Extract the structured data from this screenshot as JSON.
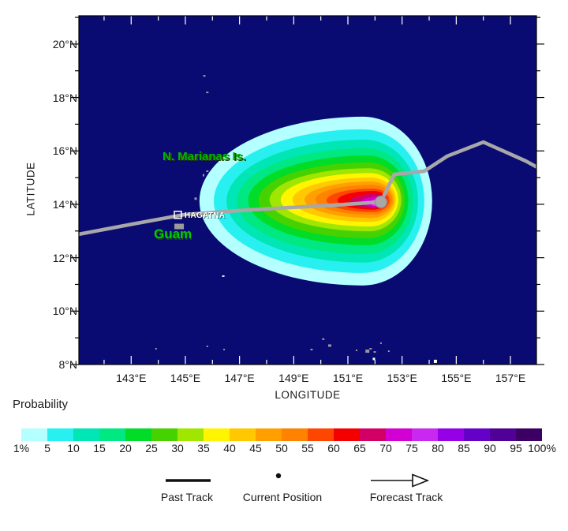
{
  "chart_data": {
    "type": "heatmap",
    "xlabel": "LONGITUDE",
    "ylabel": "LATITUDE",
    "xlim": [
      141.07,
      157.96
    ],
    "ylim": [
      8.0,
      21.06
    ],
    "grid": false,
    "map_background": "#0A0A73",
    "x_tick_labels": [
      {
        "value": 143,
        "label": "143°E"
      },
      {
        "value": 145,
        "label": "145°E"
      },
      {
        "value": 147,
        "label": "147°E"
      },
      {
        "value": 149,
        "label": "149°E"
      },
      {
        "value": 151,
        "label": "151°E"
      },
      {
        "value": 153,
        "label": "153°E"
      },
      {
        "value": 155,
        "label": "155°E"
      },
      {
        "value": 157,
        "label": "157°E"
      }
    ],
    "y_tick_labels": [
      {
        "value": 8,
        "label": "8°N"
      },
      {
        "value": 10,
        "label": "10°N"
      },
      {
        "value": 12,
        "label": "12°N"
      },
      {
        "value": 14,
        "label": "14°N"
      },
      {
        "value": 16,
        "label": "16°N"
      },
      {
        "value": 18,
        "label": "18°N"
      },
      {
        "value": 20,
        "label": "20°N"
      }
    ],
    "colorbar": {
      "title": "Probability",
      "labels": [
        "1%",
        "5",
        "10",
        "15",
        "20",
        "25",
        "30",
        "35",
        "40",
        "45",
        "50",
        "55",
        "60",
        "65",
        "70",
        "75",
        "80",
        "85",
        "90",
        "95",
        "100%"
      ],
      "colors": [
        "#B4FFFF",
        "#28F0F0",
        "#00E6B4",
        "#00E882",
        "#00DC28",
        "#46D200",
        "#A0E600",
        "#FFF500",
        "#FFC800",
        "#FFA000",
        "#FF8200",
        "#FF4600",
        "#F50000",
        "#D20064",
        "#D200D2",
        "#C828F0",
        "#9600E6",
        "#6400C8",
        "#500096",
        "#3C0064"
      ]
    },
    "contours": [
      {
        "percent": 1,
        "color": "#B4FFFF",
        "lon": 151.55,
        "lat": 14.12,
        "rw": 6.03,
        "re": 2.56,
        "rn": 3.16
      },
      {
        "percent": 5,
        "color": "#28F0F0",
        "lon": 151.55,
        "lat": 14.12,
        "rw": 5.5,
        "re": 2.27,
        "rn": 2.69
      },
      {
        "percent": 10,
        "color": "#00E6B4",
        "lon": 151.61,
        "lat": 14.12,
        "rw": 5.09,
        "re": 1.98,
        "rn": 2.3
      },
      {
        "percent": 15,
        "color": "#00E882",
        "lon": 151.66,
        "lat": 14.12,
        "rw": 4.75,
        "re": 1.75,
        "rn": 1.98
      },
      {
        "percent": 20,
        "color": "#00DC28",
        "lon": 151.72,
        "lat": 14.15,
        "rw": 4.4,
        "re": 1.51,
        "rn": 1.68
      },
      {
        "percent": 25,
        "color": "#46D200",
        "lon": 151.75,
        "lat": 14.15,
        "rw": 4.05,
        "re": 1.34,
        "rn": 1.42
      },
      {
        "percent": 30,
        "color": "#A0E600",
        "lon": 151.78,
        "lat": 14.17,
        "rw": 3.67,
        "re": 1.19,
        "rn": 1.18
      },
      {
        "percent": 35,
        "color": "#FFF500",
        "lon": 151.81,
        "lat": 14.17,
        "rw": 3.29,
        "re": 1.05,
        "rn": 1.0
      },
      {
        "percent": 40,
        "color": "#FFC800",
        "lon": 151.84,
        "lat": 14.17,
        "rw": 2.88,
        "re": 0.93,
        "rn": 0.83
      },
      {
        "percent": 45,
        "color": "#FFA000",
        "lon": 151.87,
        "lat": 14.17,
        "rw": 2.47,
        "re": 0.82,
        "rn": 0.68
      },
      {
        "percent": 50,
        "color": "#FF8200",
        "lon": 151.9,
        "lat": 14.17,
        "rw": 2.1,
        "re": 0.73,
        "rn": 0.56
      },
      {
        "percent": 55,
        "color": "#FF4600",
        "lon": 151.93,
        "lat": 14.15,
        "rw": 1.72,
        "re": 0.61,
        "rn": 0.44
      },
      {
        "percent": 60,
        "color": "#F50000",
        "lon": 151.96,
        "lat": 14.15,
        "rw": 1.34,
        "re": 0.49,
        "rn": 0.35
      },
      {
        "percent": 65,
        "color": "#D20064",
        "lon": 151.99,
        "lat": 14.12,
        "rw": 0.9,
        "re": 0.38,
        "rn": 0.27
      },
      {
        "percent": 70,
        "color": "#D200D2",
        "lon": 152.02,
        "lat": 14.09,
        "rw": 0.52,
        "re": 0.26,
        "rn": 0.19
      },
      {
        "percent": 75,
        "color": "#FA3CFA",
        "lon": 152.05,
        "lat": 14.06,
        "rw": 0.23,
        "re": 0.15,
        "rn": 0.12
      }
    ],
    "past_track": {
      "color": "#A8A8A8",
      "points": [
        [
          141.07,
          12.88
        ],
        [
          143.05,
          13.26
        ],
        [
          144.94,
          13.61
        ],
        [
          146.89,
          13.76
        ],
        [
          148.87,
          13.88
        ],
        [
          150.53,
          13.97
        ],
        [
          152.22,
          14.09
        ]
      ]
    },
    "forecast_track": {
      "color": "#A8A8A8",
      "points": [
        [
          152.22,
          14.09
        ],
        [
          152.71,
          15.12
        ],
        [
          153.82,
          15.24
        ],
        [
          154.66,
          15.8
        ],
        [
          156.0,
          16.33
        ],
        [
          157.57,
          15.62
        ],
        [
          157.98,
          15.39
        ]
      ]
    },
    "current_position": {
      "lon": 152.22,
      "lat": 14.09,
      "color": "#A8A8A8"
    },
    "places": [
      {
        "name": "HAGATNA",
        "lon": 144.74,
        "lat": 13.59,
        "marker": "open-square"
      }
    ],
    "islands": [
      {
        "lon": 145.7,
        "lat": 18.81,
        "w": 3,
        "h": 2,
        "color": "#9A9A9A"
      },
      {
        "lon": 145.81,
        "lat": 18.19,
        "w": 3,
        "h": 2,
        "color": "#9A9A9A"
      },
      {
        "lon": 144.85,
        "lat": 15.89,
        "w": 2,
        "h": 2,
        "color": "#9A9A9A"
      },
      {
        "lon": 145.81,
        "lat": 15.24,
        "w": 3,
        "h": 2,
        "color": "#9A9A9A"
      },
      {
        "lon": 145.67,
        "lat": 15.09,
        "w": 2,
        "h": 3,
        "color": "#9A9A9A"
      },
      {
        "lon": 145.38,
        "lat": 14.21,
        "w": 3,
        "h": 3,
        "color": "#9A9A9A"
      },
      {
        "lon": 144.77,
        "lat": 13.17,
        "w": 12,
        "h": 7,
        "color": "#9A9A9A"
      },
      {
        "lon": 146.4,
        "lat": 11.31,
        "w": 3,
        "h": 2,
        "color": "#E8E8E8"
      },
      {
        "lon": 143.92,
        "lat": 8.59,
        "w": 2,
        "h": 2,
        "color": "#9A9A9A"
      },
      {
        "lon": 145.81,
        "lat": 8.68,
        "w": 2,
        "h": 2,
        "color": "#9A9A9A"
      },
      {
        "lon": 146.43,
        "lat": 8.56,
        "w": 2,
        "h": 2,
        "color": "#9A9A9A"
      },
      {
        "lon": 149.66,
        "lat": 8.56,
        "w": 3,
        "h": 2,
        "color": "#9A9A9A"
      },
      {
        "lon": 150.09,
        "lat": 8.95,
        "w": 3,
        "h": 2,
        "color": "#9A9A9A"
      },
      {
        "lon": 150.33,
        "lat": 8.71,
        "w": 4,
        "h": 3,
        "color": "#9A9A9A"
      },
      {
        "lon": 151.32,
        "lat": 8.53,
        "w": 2,
        "h": 2,
        "color": "#9A9A9A"
      },
      {
        "lon": 151.72,
        "lat": 8.5,
        "w": 5,
        "h": 4,
        "color": "#9A9A9A"
      },
      {
        "lon": 151.84,
        "lat": 8.59,
        "w": 3,
        "h": 2,
        "color": "#9A9A9A"
      },
      {
        "lon": 151.99,
        "lat": 8.47,
        "w": 3,
        "h": 2,
        "color": "#9A9A9A"
      },
      {
        "lon": 152.22,
        "lat": 8.8,
        "w": 2,
        "h": 2,
        "color": "#9A9A9A"
      },
      {
        "lon": 152.51,
        "lat": 8.5,
        "w": 2,
        "h": 2,
        "color": "#9A9A9A"
      },
      {
        "lon": 154.23,
        "lat": 8.12,
        "w": 4,
        "h": 4,
        "color": "#FFFFFF"
      },
      {
        "lon": 151.96,
        "lat": 8.21,
        "w": 3,
        "h": 3,
        "color": "#FFFFFF"
      }
    ]
  },
  "map_labels": {
    "n_marianas": "N. Marianas Is.",
    "guam": "Guam"
  },
  "legend": {
    "past_track": "Past Track",
    "current_position": "Current Position",
    "forecast_track": "Forecast Track"
  }
}
